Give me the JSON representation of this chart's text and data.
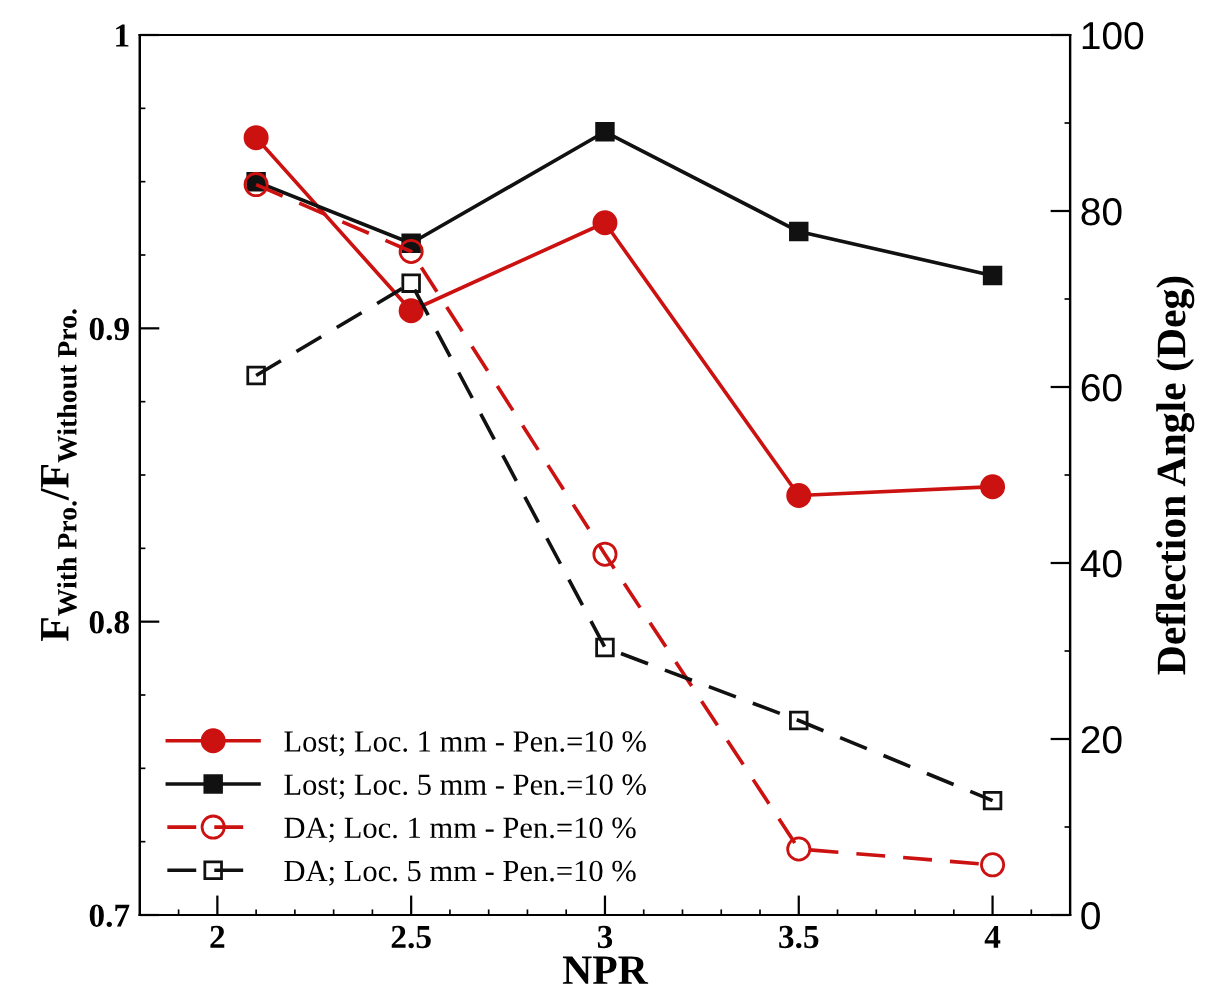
{
  "chart_data": {
    "type": "line",
    "xlabel": "NPR",
    "ylabel": "F$_{With Pro.}$/F$_{Without Pro.}$",
    "y2label": "Deflection Angle (Deg)",
    "x": [
      2.1,
      2.5,
      3,
      3.5,
      4
    ],
    "xlim": [
      1.8,
      4.2
    ],
    "xticks": [
      2,
      2.5,
      3,
      3.5,
      4
    ],
    "ylim": [
      0.7,
      1
    ],
    "yticks": [
      0.7,
      0.8,
      0.9,
      1
    ],
    "y2lim": [
      0,
      100
    ],
    "y2ticks": [
      0,
      20,
      40,
      60,
      80,
      100
    ],
    "grid": false,
    "legend": "bottom left",
    "series": [
      {
        "name": "Lost; Loc. 1 mm - Pen.=10 %",
        "color": "#cc1111",
        "marker": "circle",
        "line_style": "solid",
        "values": [
          0.965,
          0.906,
          0.936,
          0.843,
          0.846
        ]
      },
      {
        "name": "Lost; Loc. 5 mm - Pen.=10 %",
        "color": "#111111",
        "marker": "square",
        "line_style": "solid",
        "values": [
          0.95,
          0.929,
          0.967,
          0.933,
          0.918
        ]
      },
      {
        "name": "DA; Loc. 1 mm - Pen.=10 %",
        "color": "#cc1111",
        "marker": "circle",
        "line_style": "dashed",
        "axis": "y2",
        "values": [
          83,
          75.4,
          41,
          7.5,
          5.7
        ]
      },
      {
        "name": "DA; Loc. 5 mm - Pen.=10 %",
        "color": "#111111",
        "marker": "square",
        "line_style": "dashed",
        "axis": "y2",
        "values": [
          61.3,
          71.8,
          30.4,
          22.1,
          13
        ]
      }
    ]
  }
}
